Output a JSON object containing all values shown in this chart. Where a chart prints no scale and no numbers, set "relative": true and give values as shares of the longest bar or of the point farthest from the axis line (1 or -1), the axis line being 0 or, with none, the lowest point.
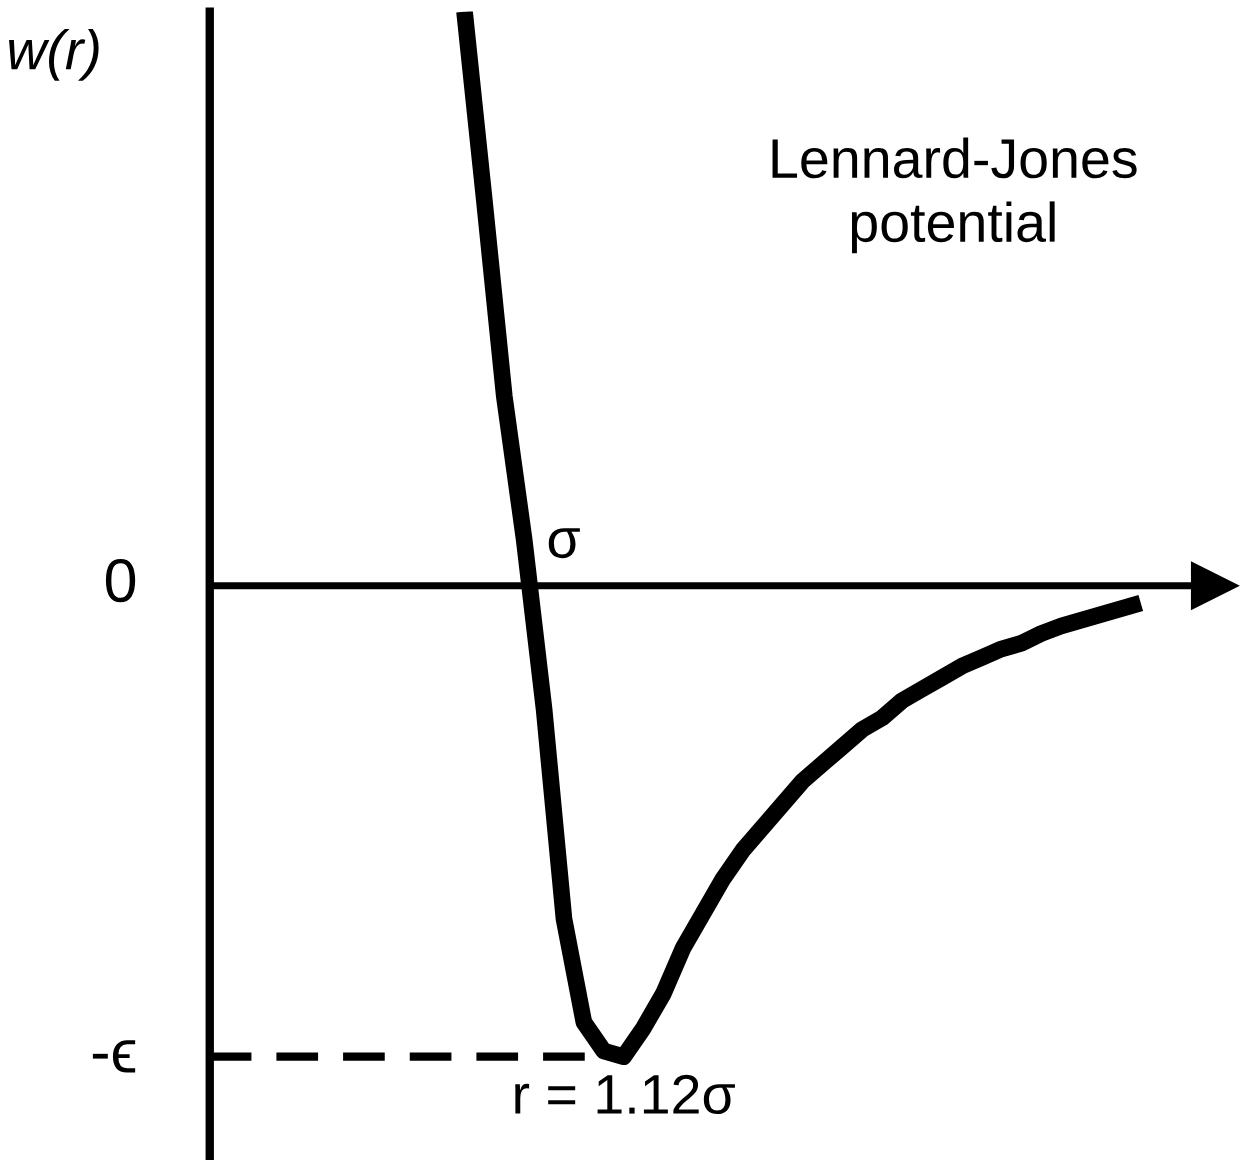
{
  "chart_data": {
    "type": "line",
    "relative": true,
    "annotations": [
      "Lennard-Jones\npotential",
      "0",
      "-ϵ",
      "σ",
      "r = 1.12σ",
      "w(r)"
    ],
    "categories": [
      null,
      null,
      null,
      null,
      null,
      null,
      null,
      null,
      null,
      null,
      null,
      null,
      null,
      null,
      null,
      null,
      null,
      null,
      null,
      null,
      null,
      null,
      null,
      null,
      null,
      null,
      null,
      null,
      null,
      null,
      null,
      null,
      null,
      null,
      null
    ],
    "grid": false,
    "legend": false,
    "marker": "none",
    "line_style": "solid",
    "ref_lines": [
      {
        "axis": "y",
        "value": -0.82,
        "color": "#000000",
        "line_style": "dashed"
      }
    ],
    "series": [
      {
        "color": "#000000",
        "values": [
          1.0,
          0.67,
          0.33,
          0.08,
          -0.215,
          -0.58,
          -0.76,
          -0.81,
          -0.82,
          -0.77,
          -0.71,
          -0.63,
          -0.57,
          -0.51,
          -0.46,
          -0.42,
          -0.38,
          -0.34,
          -0.31,
          -0.28,
          -0.25,
          -0.23,
          -0.2,
          -0.18,
          -0.16,
          -0.14,
          -0.125,
          -0.11,
          -0.1,
          -0.083,
          -0.07,
          -0.06,
          -0.05,
          -0.04,
          -0.03
        ]
      }
    ]
  }
}
